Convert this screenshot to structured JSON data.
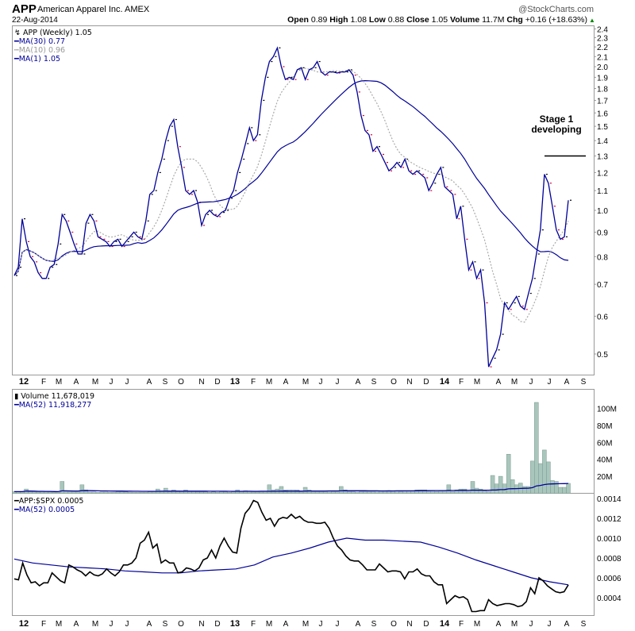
{
  "header": {
    "symbol": "APP",
    "company": "American Apparel Inc. AMEX",
    "date": "22-Aug-2014",
    "copyright": "@StockCharts.com",
    "open_label": "Open",
    "open": "0.89",
    "high_label": "High",
    "high": "1.08",
    "low_label": "Low",
    "low": "0.88",
    "close_label": "Close",
    "close": "1.05",
    "volume_label": "Volume",
    "volume": "11.7M",
    "chg_label": "Chg",
    "chg": "+0.16 (+18.63%)",
    "up_arrow": "▲"
  },
  "colors": {
    "up": "#000000",
    "down": "#cc0033",
    "ma": "#000099",
    "ma10": "#aaaaaa",
    "volume": "#a9c6bc",
    "rs": "#000000"
  },
  "chart_data": [
    {
      "type": "line",
      "title": "APP (Weekly) 1.05",
      "scale": "log",
      "ylim": [
        0.45,
        2.45
      ],
      "yticks": [
        "2.4",
        "2.3",
        "2.2",
        "2.1",
        "2.0",
        "1.9",
        "1.8",
        "1.7",
        "1.6",
        "1.5",
        "1.4",
        "1.3",
        "1.2",
        "1.1",
        "1.0",
        "0.9",
        "0.8",
        "0.7",
        "0.6",
        "0.5"
      ],
      "grid": false,
      "legend": "top-left",
      "series": [
        {
          "name": "MA(30) 0.77"
        },
        {
          "name": "MA(10) 0.96"
        },
        {
          "name": "MA(1) 1.05",
          "values": [
            0.73,
            0.76,
            0.96,
            0.86,
            0.8,
            0.78,
            0.74,
            0.72,
            0.72,
            0.76,
            0.77,
            0.85,
            0.98,
            0.95,
            0.9,
            0.85,
            0.81,
            0.81,
            0.94,
            0.98,
            0.95,
            0.88,
            0.87,
            0.86,
            0.84,
            0.86,
            0.87,
            0.84,
            0.86,
            0.88,
            0.9,
            0.88,
            0.87,
            0.95,
            1.08,
            1.1,
            1.2,
            1.28,
            1.4,
            1.5,
            1.55,
            1.36,
            1.23,
            1.1,
            1.08,
            1.1,
            1.04,
            0.93,
            0.98,
            1.0,
            0.98,
            0.97,
            0.99,
            1.0,
            1.06,
            1.1,
            1.2,
            1.28,
            1.38,
            1.49,
            1.4,
            1.44,
            1.7,
            1.9,
            2.05,
            2.1,
            2.19,
            2.0,
            1.88,
            1.9,
            1.88,
            1.97,
            1.99,
            1.88,
            1.97,
            1.99,
            2.05,
            1.95,
            1.92,
            1.95,
            1.95,
            1.94,
            1.95,
            1.95,
            1.97,
            1.92,
            1.77,
            1.58,
            1.47,
            1.44,
            1.33,
            1.36,
            1.31,
            1.26,
            1.21,
            1.23,
            1.26,
            1.23,
            1.28,
            1.21,
            1.19,
            1.21,
            1.19,
            1.17,
            1.1,
            1.14,
            1.19,
            1.23,
            1.12,
            1.1,
            1.08,
            0.96,
            1.02,
            0.87,
            0.75,
            0.78,
            0.72,
            0.75,
            0.64,
            0.47,
            0.49,
            0.51,
            0.55,
            0.64,
            0.62,
            0.64,
            0.66,
            0.63,
            0.62,
            0.67,
            0.72,
            0.81,
            0.91,
            1.19,
            1.14,
            1.02,
            0.91,
            0.87,
            0.88,
            1.05
          ]
        }
      ],
      "annotation": {
        "text1": "Stage 1",
        "text2": "developing",
        "level": 1.3
      }
    },
    {
      "type": "bar",
      "title": "Volume 11,678,019",
      "ma_label": "MA(52) 11,918,277",
      "unit": "M",
      "ylim": [
        0,
        110
      ],
      "yticks": [
        "100M",
        "80M",
        "60M",
        "40M",
        "20M"
      ],
      "values": [
        2,
        2,
        2,
        5,
        2,
        2,
        1.5,
        2,
        2,
        1.5,
        1,
        1,
        14,
        2,
        2,
        2,
        2,
        10,
        4,
        1.5,
        1.5,
        1,
        1.5,
        1.5,
        1,
        1,
        1.5,
        2,
        1.5,
        1,
        1,
        1,
        1,
        1,
        2,
        2,
        5,
        3,
        6,
        3,
        4,
        3,
        2,
        4,
        2,
        2,
        1.5,
        1.5,
        1.5,
        1,
        1.5,
        1,
        2,
        1.5,
        1,
        2,
        4,
        2,
        3,
        2,
        1.5,
        1.5,
        1.5,
        2,
        10,
        4,
        5,
        8,
        4,
        4,
        4,
        4,
        2,
        7,
        4,
        2,
        2,
        2,
        2,
        3,
        2,
        2,
        8,
        4,
        2,
        2,
        1.5,
        2,
        2,
        2,
        2,
        3,
        3,
        3,
        3,
        3,
        3,
        2,
        3,
        3,
        3,
        4,
        4,
        4,
        3,
        3,
        2,
        3,
        3,
        10,
        2,
        4,
        5,
        5,
        2,
        14,
        6,
        5,
        3,
        2,
        21,
        11,
        20,
        11,
        46,
        16,
        10,
        12,
        8,
        8,
        38,
        107,
        35,
        51,
        37,
        15,
        14,
        7,
        7,
        11.7
      ]
    },
    {
      "type": "line",
      "ylim": [
        0.00022,
        0.00145
      ],
      "yticks": [
        "0.0014",
        "0.0012",
        "0.0010",
        "0.0008",
        "0.0006",
        "0.0004"
      ],
      "series": [
        {
          "name": "APP:$SPX 0.0005",
          "values": [
            0.00059,
            0.00058,
            0.00075,
            0.00063,
            0.00055,
            0.00056,
            0.00052,
            0.00055,
            0.00055,
            0.00065,
            0.00061,
            0.00057,
            0.00055,
            0.00073,
            0.00071,
            0.00068,
            0.00066,
            0.00062,
            0.00066,
            0.00063,
            0.00062,
            0.00064,
            0.00069,
            0.00065,
            0.00062,
            0.00066,
            0.00073,
            0.00073,
            0.00075,
            0.0008,
            0.00095,
            0.00098,
            0.00106,
            0.0009,
            0.00094,
            0.00075,
            0.00078,
            0.00075,
            0.00075,
            0.00065,
            0.00066,
            0.0007,
            0.00069,
            0.00067,
            0.0007,
            0.00078,
            0.0008,
            0.00088,
            0.0008,
            0.00092,
            0.001,
            0.00092,
            0.00086,
            0.00085,
            0.0011,
            0.00125,
            0.0013,
            0.00138,
            0.00136,
            0.00126,
            0.00118,
            0.0012,
            0.00112,
            0.00119,
            0.00121,
            0.0012,
            0.00124,
            0.0012,
            0.00122,
            0.00118,
            0.00116,
            0.00116,
            0.00115,
            0.00115,
            0.00116,
            0.0011,
            0.001,
            0.00092,
            0.00088,
            0.00082,
            0.00078,
            0.00077,
            0.00077,
            0.00073,
            0.00068,
            0.00068,
            0.00068,
            0.00074,
            0.0007,
            0.00066,
            0.00067,
            0.00067,
            0.00066,
            0.00059,
            0.00066,
            0.00066,
            0.00069,
            0.00064,
            0.00062,
            0.00062,
            0.00056,
            0.00053,
            0.00053,
            0.00034,
            0.00038,
            0.00042,
            0.0004,
            0.00041,
            0.00038,
            0.00026,
            0.00026,
            0.00027,
            0.00027,
            0.00038,
            0.00034,
            0.00032,
            0.00033,
            0.00034,
            0.00034,
            0.00033,
            0.00031,
            0.00032,
            0.00036,
            0.0005,
            0.00044,
            0.0006,
            0.00057,
            0.00052,
            0.00049,
            0.00046,
            0.00045,
            0.00046,
            0.00053
          ]
        },
        {
          "name": "MA(52) 0.0005",
          "values": [
            0.00079,
            0.00075,
            0.00073,
            0.00071,
            0.0007,
            0.00069,
            0.00067,
            0.00066,
            0.00065,
            0.00065,
            0.00067,
            0.00068,
            0.00069,
            0.00073,
            0.00081,
            0.00085,
            0.0009,
            0.00096,
            0.001,
            0.00098,
            0.00098,
            0.00097,
            0.00096,
            0.00091,
            0.00085,
            0.00078,
            0.00072,
            0.00066,
            0.0006,
            0.00056,
            0.00053
          ]
        }
      ]
    }
  ],
  "x_axis": {
    "labels": [
      "12",
      "F",
      "M",
      "A",
      "M",
      "J",
      "J",
      "A",
      "S",
      "O",
      "N",
      "D",
      "13",
      "F",
      "M",
      "A",
      "M",
      "J",
      "J",
      "A",
      "S",
      "O",
      "N",
      "D",
      "14",
      "F",
      "M",
      "A",
      "M",
      "J",
      "J",
      "A",
      "S"
    ]
  }
}
